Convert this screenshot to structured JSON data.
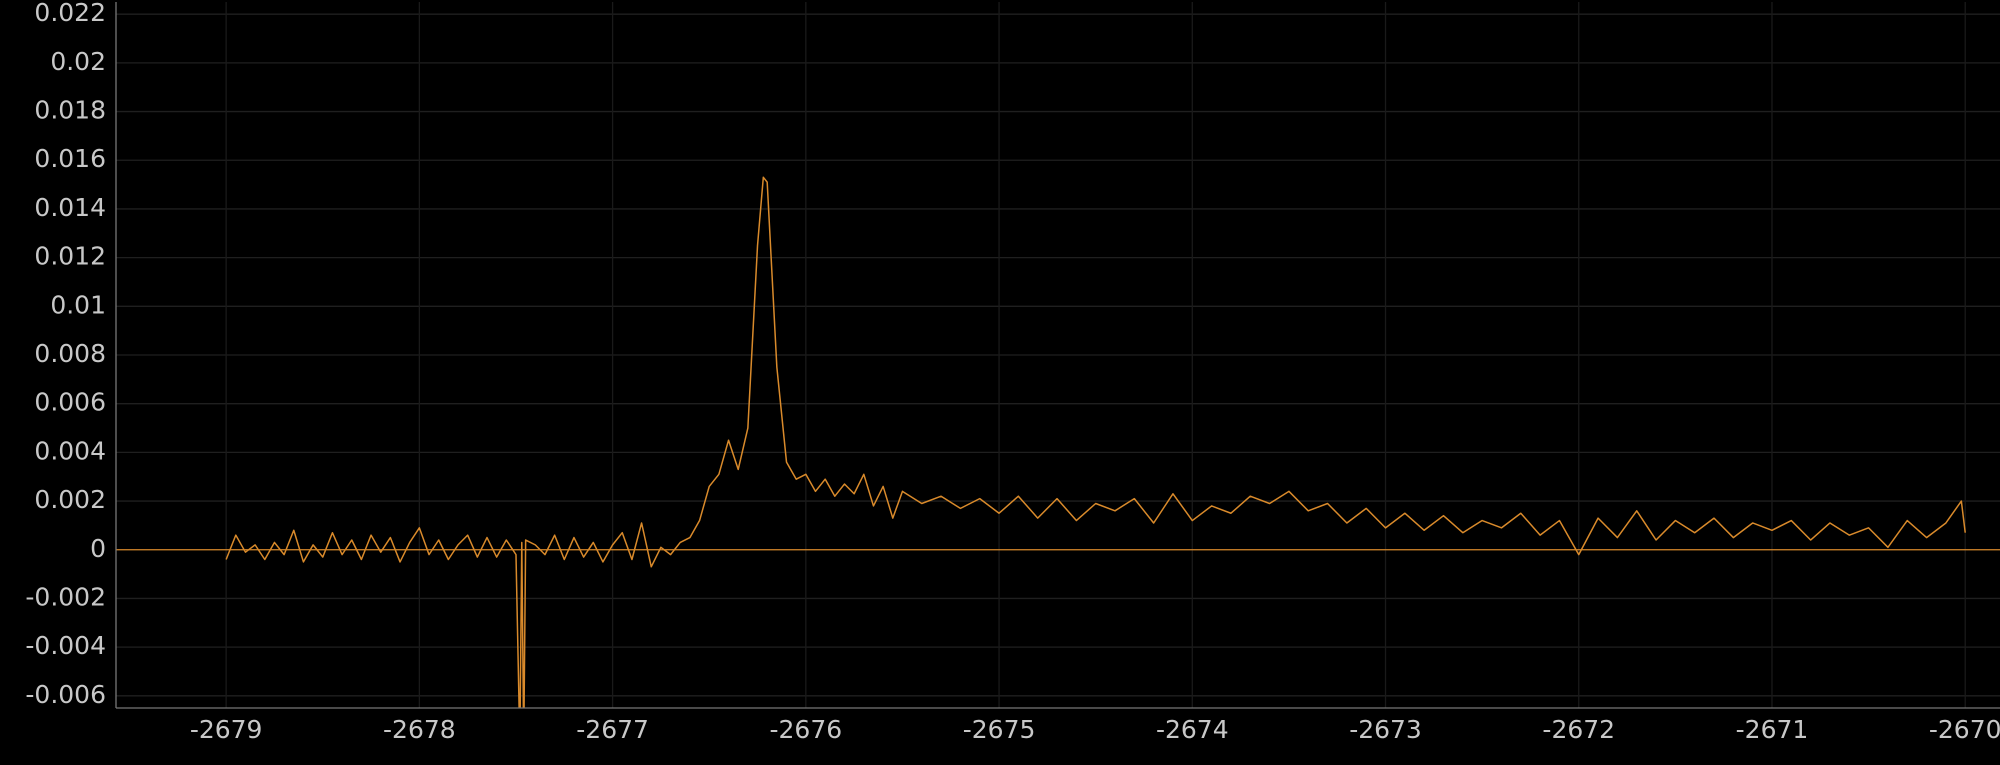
{
  "chart_data": {
    "type": "line",
    "color": "#d98a2b",
    "grid": true,
    "xlim": [
      -2679.57,
      -2669.82
    ],
    "ylim": [
      -0.0065,
      0.0225
    ],
    "xticks": [
      -2679,
      -2678,
      -2677,
      -2676,
      -2675,
      -2674,
      -2673,
      -2672,
      -2671,
      -2670
    ],
    "yticks": [
      -0.006,
      -0.004,
      -0.002,
      0,
      0.002,
      0.004,
      0.006,
      0.008,
      0.01,
      0.012,
      0.014,
      0.016,
      0.018,
      0.02,
      0.022
    ],
    "x": [
      -2679.0,
      -2678.95,
      -2678.9,
      -2678.85,
      -2678.8,
      -2678.75,
      -2678.7,
      -2678.65,
      -2678.6,
      -2678.55,
      -2678.5,
      -2678.45,
      -2678.4,
      -2678.35,
      -2678.3,
      -2678.25,
      -2678.2,
      -2678.15,
      -2678.1,
      -2678.05,
      -2678.0,
      -2677.95,
      -2677.9,
      -2677.85,
      -2677.8,
      -2677.75,
      -2677.7,
      -2677.65,
      -2677.6,
      -2677.55,
      -2677.5,
      -2677.48,
      -2677.47,
      -2677.46,
      -2677.45,
      -2677.4,
      -2677.35,
      -2677.3,
      -2677.25,
      -2677.2,
      -2677.15,
      -2677.1,
      -2677.05,
      -2677.0,
      -2676.95,
      -2676.9,
      -2676.85,
      -2676.8,
      -2676.75,
      -2676.7,
      -2676.65,
      -2676.6,
      -2676.55,
      -2676.5,
      -2676.45,
      -2676.4,
      -2676.35,
      -2676.3,
      -2676.25,
      -2676.22,
      -2676.2,
      -2676.15,
      -2676.1,
      -2676.05,
      -2676.0,
      -2675.95,
      -2675.9,
      -2675.85,
      -2675.8,
      -2675.75,
      -2675.7,
      -2675.65,
      -2675.6,
      -2675.55,
      -2675.5,
      -2675.4,
      -2675.3,
      -2675.2,
      -2675.1,
      -2675.0,
      -2674.9,
      -2674.8,
      -2674.7,
      -2674.6,
      -2674.5,
      -2674.4,
      -2674.3,
      -2674.2,
      -2674.1,
      -2674.0,
      -2673.9,
      -2673.8,
      -2673.7,
      -2673.6,
      -2673.5,
      -2673.4,
      -2673.3,
      -2673.2,
      -2673.1,
      -2673.0,
      -2672.9,
      -2672.8,
      -2672.7,
      -2672.6,
      -2672.5,
      -2672.4,
      -2672.3,
      -2672.2,
      -2672.1,
      -2672.0,
      -2671.9,
      -2671.8,
      -2671.7,
      -2671.6,
      -2671.5,
      -2671.4,
      -2671.3,
      -2671.2,
      -2671.1,
      -2671.0,
      -2670.9,
      -2670.8,
      -2670.7,
      -2670.6,
      -2670.5,
      -2670.4,
      -2670.3,
      -2670.2,
      -2670.1,
      -2670.02,
      -2670.0
    ],
    "values": [
      -0.0004,
      0.0006,
      -0.0001,
      0.0002,
      -0.0004,
      0.0003,
      -0.0002,
      0.0008,
      -0.0005,
      0.0002,
      -0.0003,
      0.0007,
      -0.0002,
      0.0004,
      -0.0004,
      0.0006,
      -0.0001,
      0.0005,
      -0.0005,
      0.0003,
      0.0009,
      -0.0002,
      0.0004,
      -0.0004,
      0.0002,
      0.0006,
      -0.0003,
      0.0005,
      -0.0003,
      0.0004,
      -0.0002,
      -0.008,
      0.0003,
      -0.008,
      0.0004,
      0.0002,
      -0.0002,
      0.0006,
      -0.0004,
      0.0005,
      -0.0003,
      0.0003,
      -0.0005,
      0.0002,
      0.0007,
      -0.0004,
      0.0011,
      -0.0007,
      0.0001,
      -0.0002,
      0.0003,
      0.0005,
      0.0012,
      0.0026,
      0.0031,
      0.0045,
      0.0033,
      0.005,
      0.0125,
      0.0153,
      0.0151,
      0.0075,
      0.0036,
      0.0029,
      0.0031,
      0.0024,
      0.0029,
      0.0022,
      0.0027,
      0.0023,
      0.0031,
      0.0018,
      0.0026,
      0.0013,
      0.0024,
      0.0019,
      0.0022,
      0.0017,
      0.0021,
      0.0015,
      0.0022,
      0.0013,
      0.0021,
      0.0012,
      0.0019,
      0.0016,
      0.0021,
      0.0011,
      0.0023,
      0.0012,
      0.0018,
      0.0015,
      0.0022,
      0.0019,
      0.0024,
      0.0016,
      0.0019,
      0.0011,
      0.0017,
      0.0009,
      0.0015,
      0.0008,
      0.0014,
      0.0007,
      0.0012,
      0.0009,
      0.0015,
      0.0006,
      0.0012,
      -0.0002,
      0.0013,
      0.0005,
      0.0016,
      0.0004,
      0.0012,
      0.0007,
      0.0013,
      0.0005,
      0.0011,
      0.0008,
      0.0012,
      0.0004,
      0.0011,
      0.0006,
      0.0009,
      0.0001,
      0.0012,
      0.0005,
      0.0011,
      0.002,
      0.0007
    ]
  }
}
